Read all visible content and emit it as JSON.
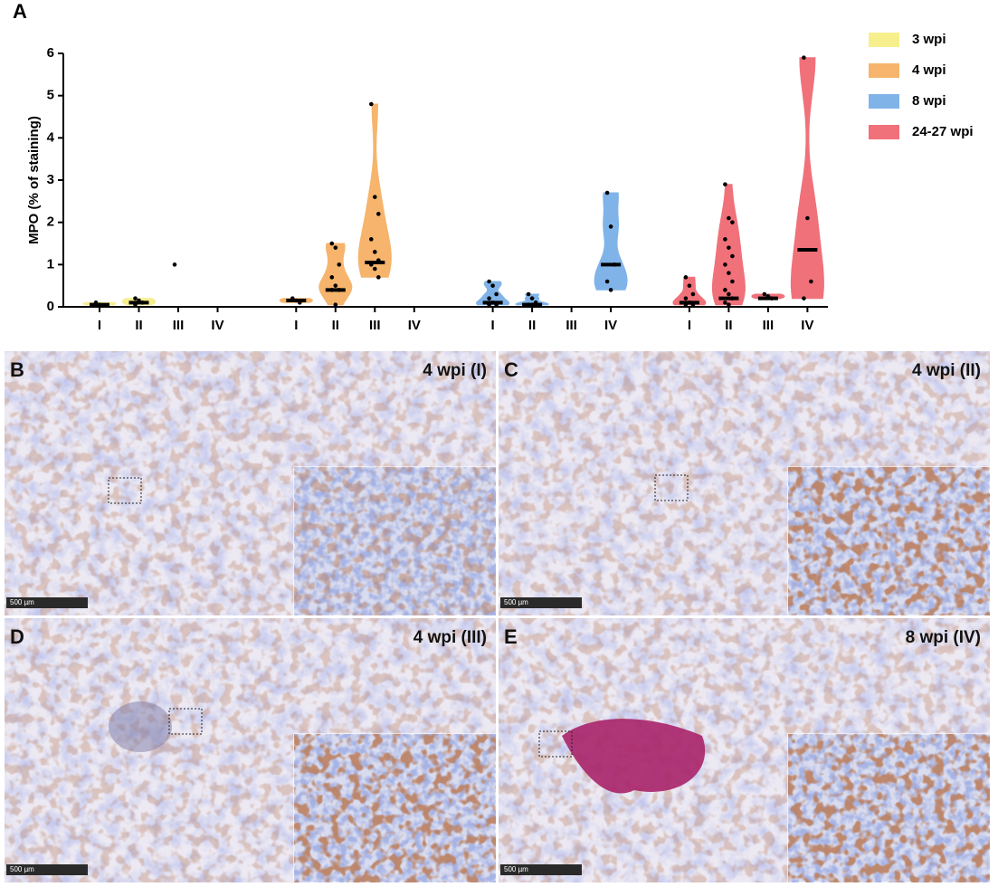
{
  "chart_data": {
    "type": "violin",
    "panel_label": "A",
    "y_label": "MPO (% of staining)",
    "ylim": [
      0,
      6
    ],
    "yticks": [
      0,
      1,
      2,
      3,
      4,
      5,
      6
    ],
    "categories": [
      "I",
      "II",
      "III",
      "IV"
    ],
    "series": [
      {
        "name": "3 wpi",
        "color": "#f6ef8c",
        "groups": [
          {
            "median": 0.05,
            "points": [
              0.1,
              0.05
            ]
          },
          {
            "median": 0.1,
            "points": [
              0.2,
              0.15,
              0.1,
              0.05
            ]
          },
          {
            "median": null,
            "points": [
              1.0
            ]
          },
          {
            "median": null,
            "points": []
          }
        ]
      },
      {
        "name": "4 wpi",
        "color": "#f6b46c",
        "groups": [
          {
            "median": 0.15,
            "points": [
              0.2,
              0.15,
              0.1
            ]
          },
          {
            "median": 0.4,
            "points": [
              1.5,
              1.4,
              1.0,
              0.7,
              0.5,
              0.4,
              0.4,
              0.05
            ]
          },
          {
            "median": 1.05,
            "points": [
              4.8,
              2.6,
              2.2,
              1.6,
              1.3,
              1.1,
              1.0,
              0.9,
              0.7
            ]
          },
          {
            "median": null,
            "points": []
          }
        ]
      },
      {
        "name": "8 wpi",
        "color": "#80b4e9",
        "groups": [
          {
            "median": 0.1,
            "points": [
              0.6,
              0.5,
              0.3,
              0.2,
              0.1,
              0.05,
              0.05
            ]
          },
          {
            "median": 0.05,
            "points": [
              0.3,
              0.2,
              0.1,
              0.05,
              0.05
            ]
          },
          {
            "median": null,
            "points": []
          },
          {
            "median": 1.0,
            "points": [
              2.7,
              1.9,
              1.0,
              0.6,
              0.4
            ]
          }
        ]
      },
      {
        "name": "24-27 wpi",
        "color": "#f0717a",
        "groups": [
          {
            "median": 0.1,
            "points": [
              0.7,
              0.5,
              0.3,
              0.2,
              0.1,
              0.05,
              0.05
            ]
          },
          {
            "median": 0.2,
            "points": [
              2.9,
              2.1,
              2.0,
              1.6,
              1.4,
              1.2,
              1.0,
              0.8,
              0.6,
              0.4,
              0.3,
              0.2,
              0.1,
              0.05
            ]
          },
          {
            "median": 0.2,
            "points": [
              0.3,
              0.25,
              0.2
            ]
          },
          {
            "median": 1.35,
            "points": [
              5.9,
              2.1,
              0.6,
              0.2
            ]
          }
        ]
      }
    ]
  },
  "panels": [
    {
      "label": "B",
      "title": "4 wpi (I)",
      "scale": "500 µm"
    },
    {
      "label": "C",
      "title": "4 wpi (II)",
      "scale": "500 µm"
    },
    {
      "label": "D",
      "title": "4 wpi (III)",
      "scale": "500 µm"
    },
    {
      "label": "E",
      "title": "8 wpi (IV)",
      "scale": "500 µm"
    }
  ]
}
